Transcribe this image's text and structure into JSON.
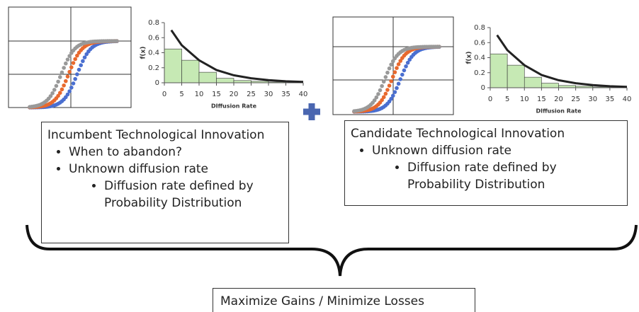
{
  "chart_data": [
    {
      "type": "histogram",
      "xlabel": "DIffusion Rate",
      "ylabel": "f(x)",
      "bins": [
        0,
        5,
        10,
        15,
        20,
        25,
        30,
        35
      ],
      "counts": [
        0.45,
        0.3,
        0.14,
        0.06,
        0.03,
        0.02,
        0.01
      ],
      "color": "#c6e9b4",
      "curve": {
        "x": [
          2,
          5,
          10,
          15,
          20,
          25,
          30,
          35,
          40
        ],
        "values": [
          0.7,
          0.5,
          0.3,
          0.17,
          0.1,
          0.06,
          0.035,
          0.02,
          0.012
        ],
        "color": "#222222"
      },
      "xlim": [
        0,
        40
      ],
      "ylim": [
        0,
        0.8
      ],
      "xticks": [
        0,
        5,
        10,
        15,
        20,
        25,
        30,
        35,
        40
      ],
      "yticks": [
        0,
        0.2,
        0.4,
        0.6,
        0.8
      ]
    },
    {
      "type": "histogram",
      "xlabel": "DIffusion Rate",
      "ylabel": "f(x)",
      "bins": [
        0,
        5,
        10,
        15,
        20,
        25,
        30,
        35
      ],
      "counts": [
        0.45,
        0.3,
        0.14,
        0.06,
        0.03,
        0.02,
        0.01
      ],
      "color": "#c6e9b4",
      "curve": {
        "x": [
          2,
          5,
          10,
          15,
          20,
          25,
          30,
          35,
          40
        ],
        "values": [
          0.7,
          0.5,
          0.3,
          0.17,
          0.1,
          0.06,
          0.035,
          0.02,
          0.012
        ],
        "color": "#222222"
      },
      "xlim": [
        0,
        40
      ],
      "ylim": [
        0,
        0.8
      ],
      "xticks": [
        0,
        5,
        10,
        15,
        20,
        25,
        30,
        35,
        40
      ],
      "yticks": [
        0,
        0.2,
        0.4,
        0.6,
        0.8
      ]
    }
  ],
  "incumbent": {
    "title": "Incumbent Technological Innovation",
    "bullets": [
      "When to abandon?",
      "Unknown diffusion rate"
    ],
    "sub_bullets": [
      "Diffusion rate defined by Probability Distribution"
    ]
  },
  "candidate": {
    "title": "Candidate Technological Innovation",
    "bullets": [
      "Unknown diffusion rate"
    ],
    "sub_bullets": [
      "Diffusion rate defined by Probability Distribution"
    ]
  },
  "outcome": "Maximize Gains / Minimize Losses"
}
